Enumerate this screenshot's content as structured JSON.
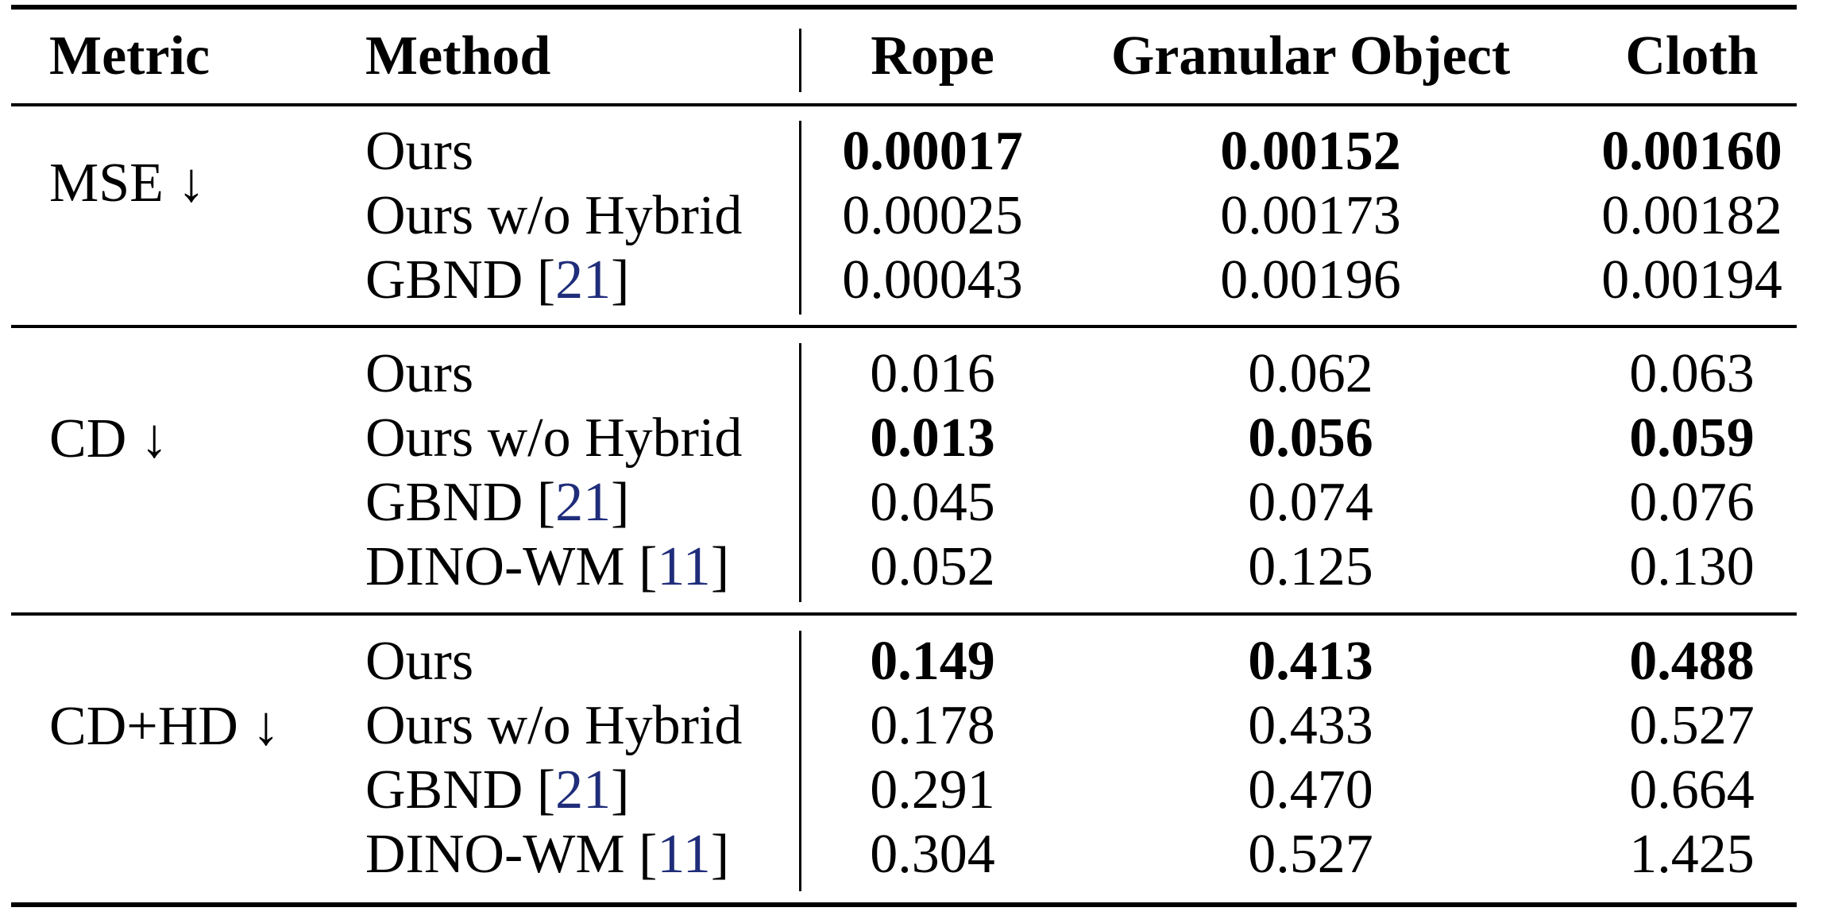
{
  "table": {
    "headers": {
      "metric": "Metric",
      "method": "Method",
      "rope": "Rope",
      "granular": "Granular Object",
      "cloth": "Cloth"
    },
    "groups": [
      {
        "metric": "MSE ↓",
        "rows": [
          {
            "method": "Ours",
            "cite": "",
            "rope": "0.00017",
            "granular": "0.00152",
            "cloth": "0.00160",
            "bold": [
              true,
              true,
              true
            ]
          },
          {
            "method": "Ours w/o Hybrid",
            "cite": "",
            "rope": "0.00025",
            "granular": "0.00173",
            "cloth": "0.00182",
            "bold": [
              false,
              false,
              false
            ]
          },
          {
            "method": "GBND [",
            "cite": "21",
            "close": "]",
            "rope": "0.00043",
            "granular": "0.00196",
            "cloth": "0.00194",
            "bold": [
              false,
              false,
              false
            ]
          }
        ]
      },
      {
        "metric": "CD ↓",
        "rows": [
          {
            "method": "Ours",
            "cite": "",
            "rope": "0.016",
            "granular": "0.062",
            "cloth": "0.063",
            "bold": [
              false,
              false,
              false
            ]
          },
          {
            "method": "Ours w/o Hybrid",
            "cite": "",
            "rope": "0.013",
            "granular": "0.056",
            "cloth": "0.059",
            "bold": [
              true,
              true,
              true
            ]
          },
          {
            "method": "GBND [",
            "cite": "21",
            "close": "]",
            "rope": "0.045",
            "granular": "0.074",
            "cloth": "0.076",
            "bold": [
              false,
              false,
              false
            ]
          },
          {
            "method": "DINO-WM [",
            "cite": "11",
            "close": "]",
            "rope": "0.052",
            "granular": "0.125",
            "cloth": "0.130",
            "bold": [
              false,
              false,
              false
            ]
          }
        ]
      },
      {
        "metric": "CD+HD ↓",
        "rows": [
          {
            "method": "Ours",
            "cite": "",
            "rope": "0.149",
            "granular": "0.413",
            "cloth": "0.488",
            "bold": [
              true,
              true,
              true
            ]
          },
          {
            "method": "Ours w/o Hybrid",
            "cite": "",
            "rope": "0.178",
            "granular": "0.433",
            "cloth": "0.527",
            "bold": [
              false,
              false,
              false
            ]
          },
          {
            "method": "GBND [",
            "cite": "21",
            "close": "]",
            "rope": "0.291",
            "granular": "0.470",
            "cloth": "0.664",
            "bold": [
              false,
              false,
              false
            ]
          },
          {
            "method": "DINO-WM [",
            "cite": "11",
            "close": "]",
            "rope": "0.304",
            "granular": "0.527",
            "cloth": "1.425",
            "bold": [
              false,
              false,
              false
            ]
          }
        ]
      }
    ]
  }
}
